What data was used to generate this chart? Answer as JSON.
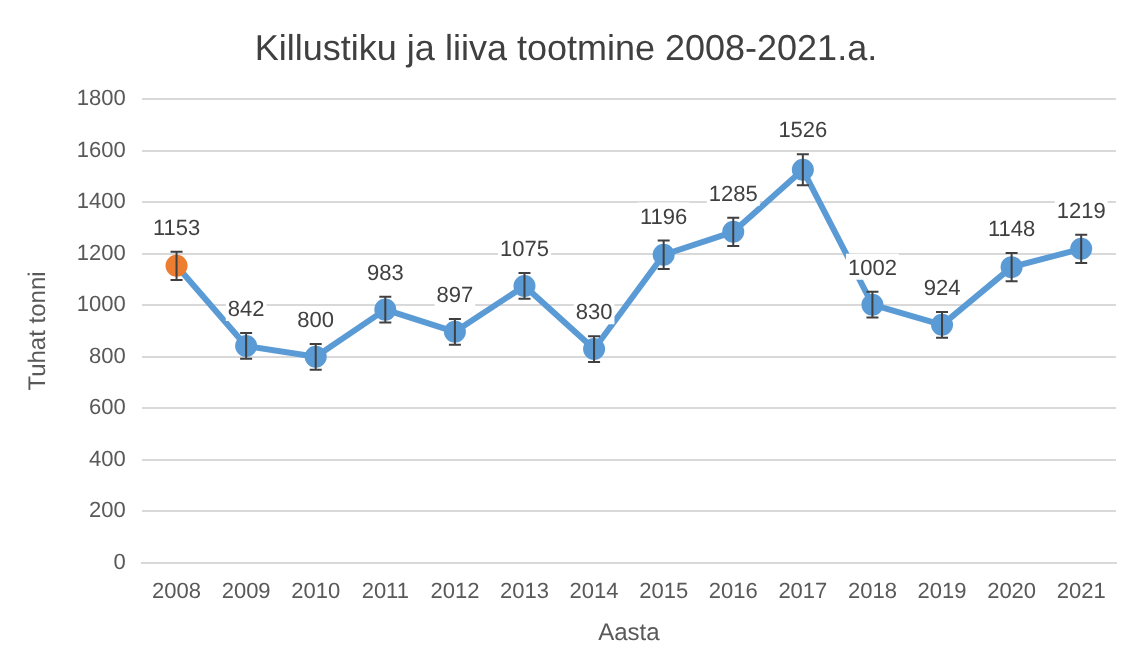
{
  "chart_data": {
    "type": "line",
    "title": "Killustiku ja liiva tootmine 2008-2021.a.",
    "xlabel": "Aasta",
    "ylabel": "Tuhat tonni",
    "categories": [
      "2008",
      "2009",
      "2010",
      "2011",
      "2012",
      "2013",
      "2014",
      "2015",
      "2016",
      "2017",
      "2018",
      "2019",
      "2020",
      "2021"
    ],
    "series": [
      {
        "color": "#5b9bd5",
        "colors": [
          "#ed7d31",
          "#5b9bd5",
          "#5b9bd5",
          "#5b9bd5",
          "#5b9bd5",
          "#5b9bd5",
          "#5b9bd5",
          "#5b9bd5",
          "#5b9bd5",
          "#5b9bd5",
          "#5b9bd5",
          "#5b9bd5",
          "#5b9bd5",
          "#5b9bd5"
        ],
        "values": [
          1153,
          842,
          800,
          983,
          897,
          1075,
          830,
          1196,
          1285,
          1526,
          1002,
          924,
          1148,
          1219
        ],
        "errors": [
          55,
          50,
          50,
          50,
          50,
          50,
          50,
          55,
          55,
          60,
          50,
          50,
          55,
          55
        ]
      }
    ],
    "ylim": [
      0,
      1800
    ],
    "yticks": [
      0,
      200,
      400,
      600,
      800,
      1000,
      1200,
      1400,
      1600,
      1800
    ],
    "grid": "y",
    "legend": false,
    "marker": "circle",
    "line_style": "solid",
    "data_labels": true
  }
}
